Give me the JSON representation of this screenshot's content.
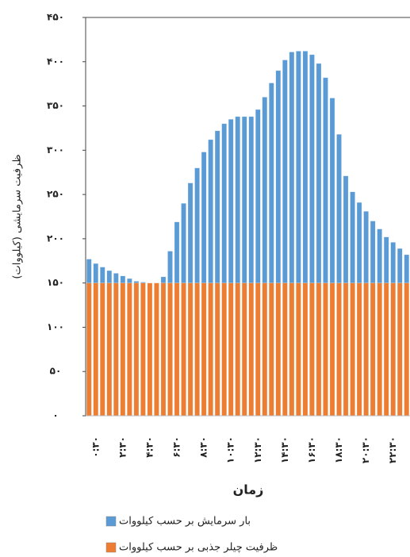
{
  "chart_data": {
    "type": "bar",
    "y_label": "ظرفیت سرمایشی (کیلووات)",
    "x_label": "زمان",
    "categories": [
      null,
      "۰:۳۰",
      null,
      null,
      null,
      "۲:۳۰",
      null,
      null,
      null,
      "۴:۳۰",
      null,
      null,
      null,
      "۶:۳۰",
      null,
      null,
      null,
      "۸:۳۰",
      null,
      null,
      null,
      "۱۰:۳۰",
      null,
      null,
      null,
      "۱۲:۳۰",
      null,
      null,
      null,
      "۱۴:۳۰",
      null,
      null,
      null,
      "۱۶:۳۰",
      null,
      null,
      null,
      "۱۸:۳۰",
      null,
      null,
      null,
      "۲۰:۳۰",
      null,
      null,
      null,
      "۲۲:۳۰",
      null,
      null
    ],
    "series": [
      {
        "name": "بار سرمایش بر حسب کیلووات",
        "color": "#5b9bd5",
        "values": [
          177,
          172,
          168,
          164,
          161,
          158,
          155,
          152,
          151,
          148,
          150,
          157,
          186,
          219,
          240,
          263,
          280,
          298,
          312,
          322,
          330,
          335,
          338,
          338,
          338,
          346,
          360,
          376,
          390,
          402,
          411,
          412,
          412,
          408,
          398,
          382,
          359,
          318,
          271,
          253,
          241,
          231,
          220,
          211,
          202,
          196,
          189,
          182
        ]
      },
      {
        "name": "ظرفیت چیلر جذبی بر حسب کیلووات",
        "color": "#ed7d31",
        "values": [
          150,
          150,
          150,
          150,
          150,
          150,
          150,
          150,
          150,
          150,
          150,
          150,
          150,
          150,
          150,
          150,
          150,
          150,
          150,
          150,
          150,
          150,
          150,
          150,
          150,
          150,
          150,
          150,
          150,
          150,
          150,
          150,
          150,
          150,
          150,
          150,
          150,
          150,
          150,
          150,
          150,
          150,
          150,
          150,
          150,
          150,
          150,
          150
        ]
      }
    ],
    "ylim": [
      0,
      450
    ],
    "yticks": [
      {
        "value": 0,
        "label": "۰"
      },
      {
        "value": 50,
        "label": "۵۰"
      },
      {
        "value": 100,
        "label": "۱۰۰"
      },
      {
        "value": 150,
        "label": "۱۵۰"
      },
      {
        "value": 200,
        "label": "۲۰۰"
      },
      {
        "value": 250,
        "label": "۲۵۰"
      },
      {
        "value": 300,
        "label": "۳۰۰"
      },
      {
        "value": 350,
        "label": "۳۵۰"
      },
      {
        "value": 400,
        "label": "۴۰۰"
      },
      {
        "value": 450,
        "label": "۴۵۰"
      }
    ],
    "grid": false
  }
}
